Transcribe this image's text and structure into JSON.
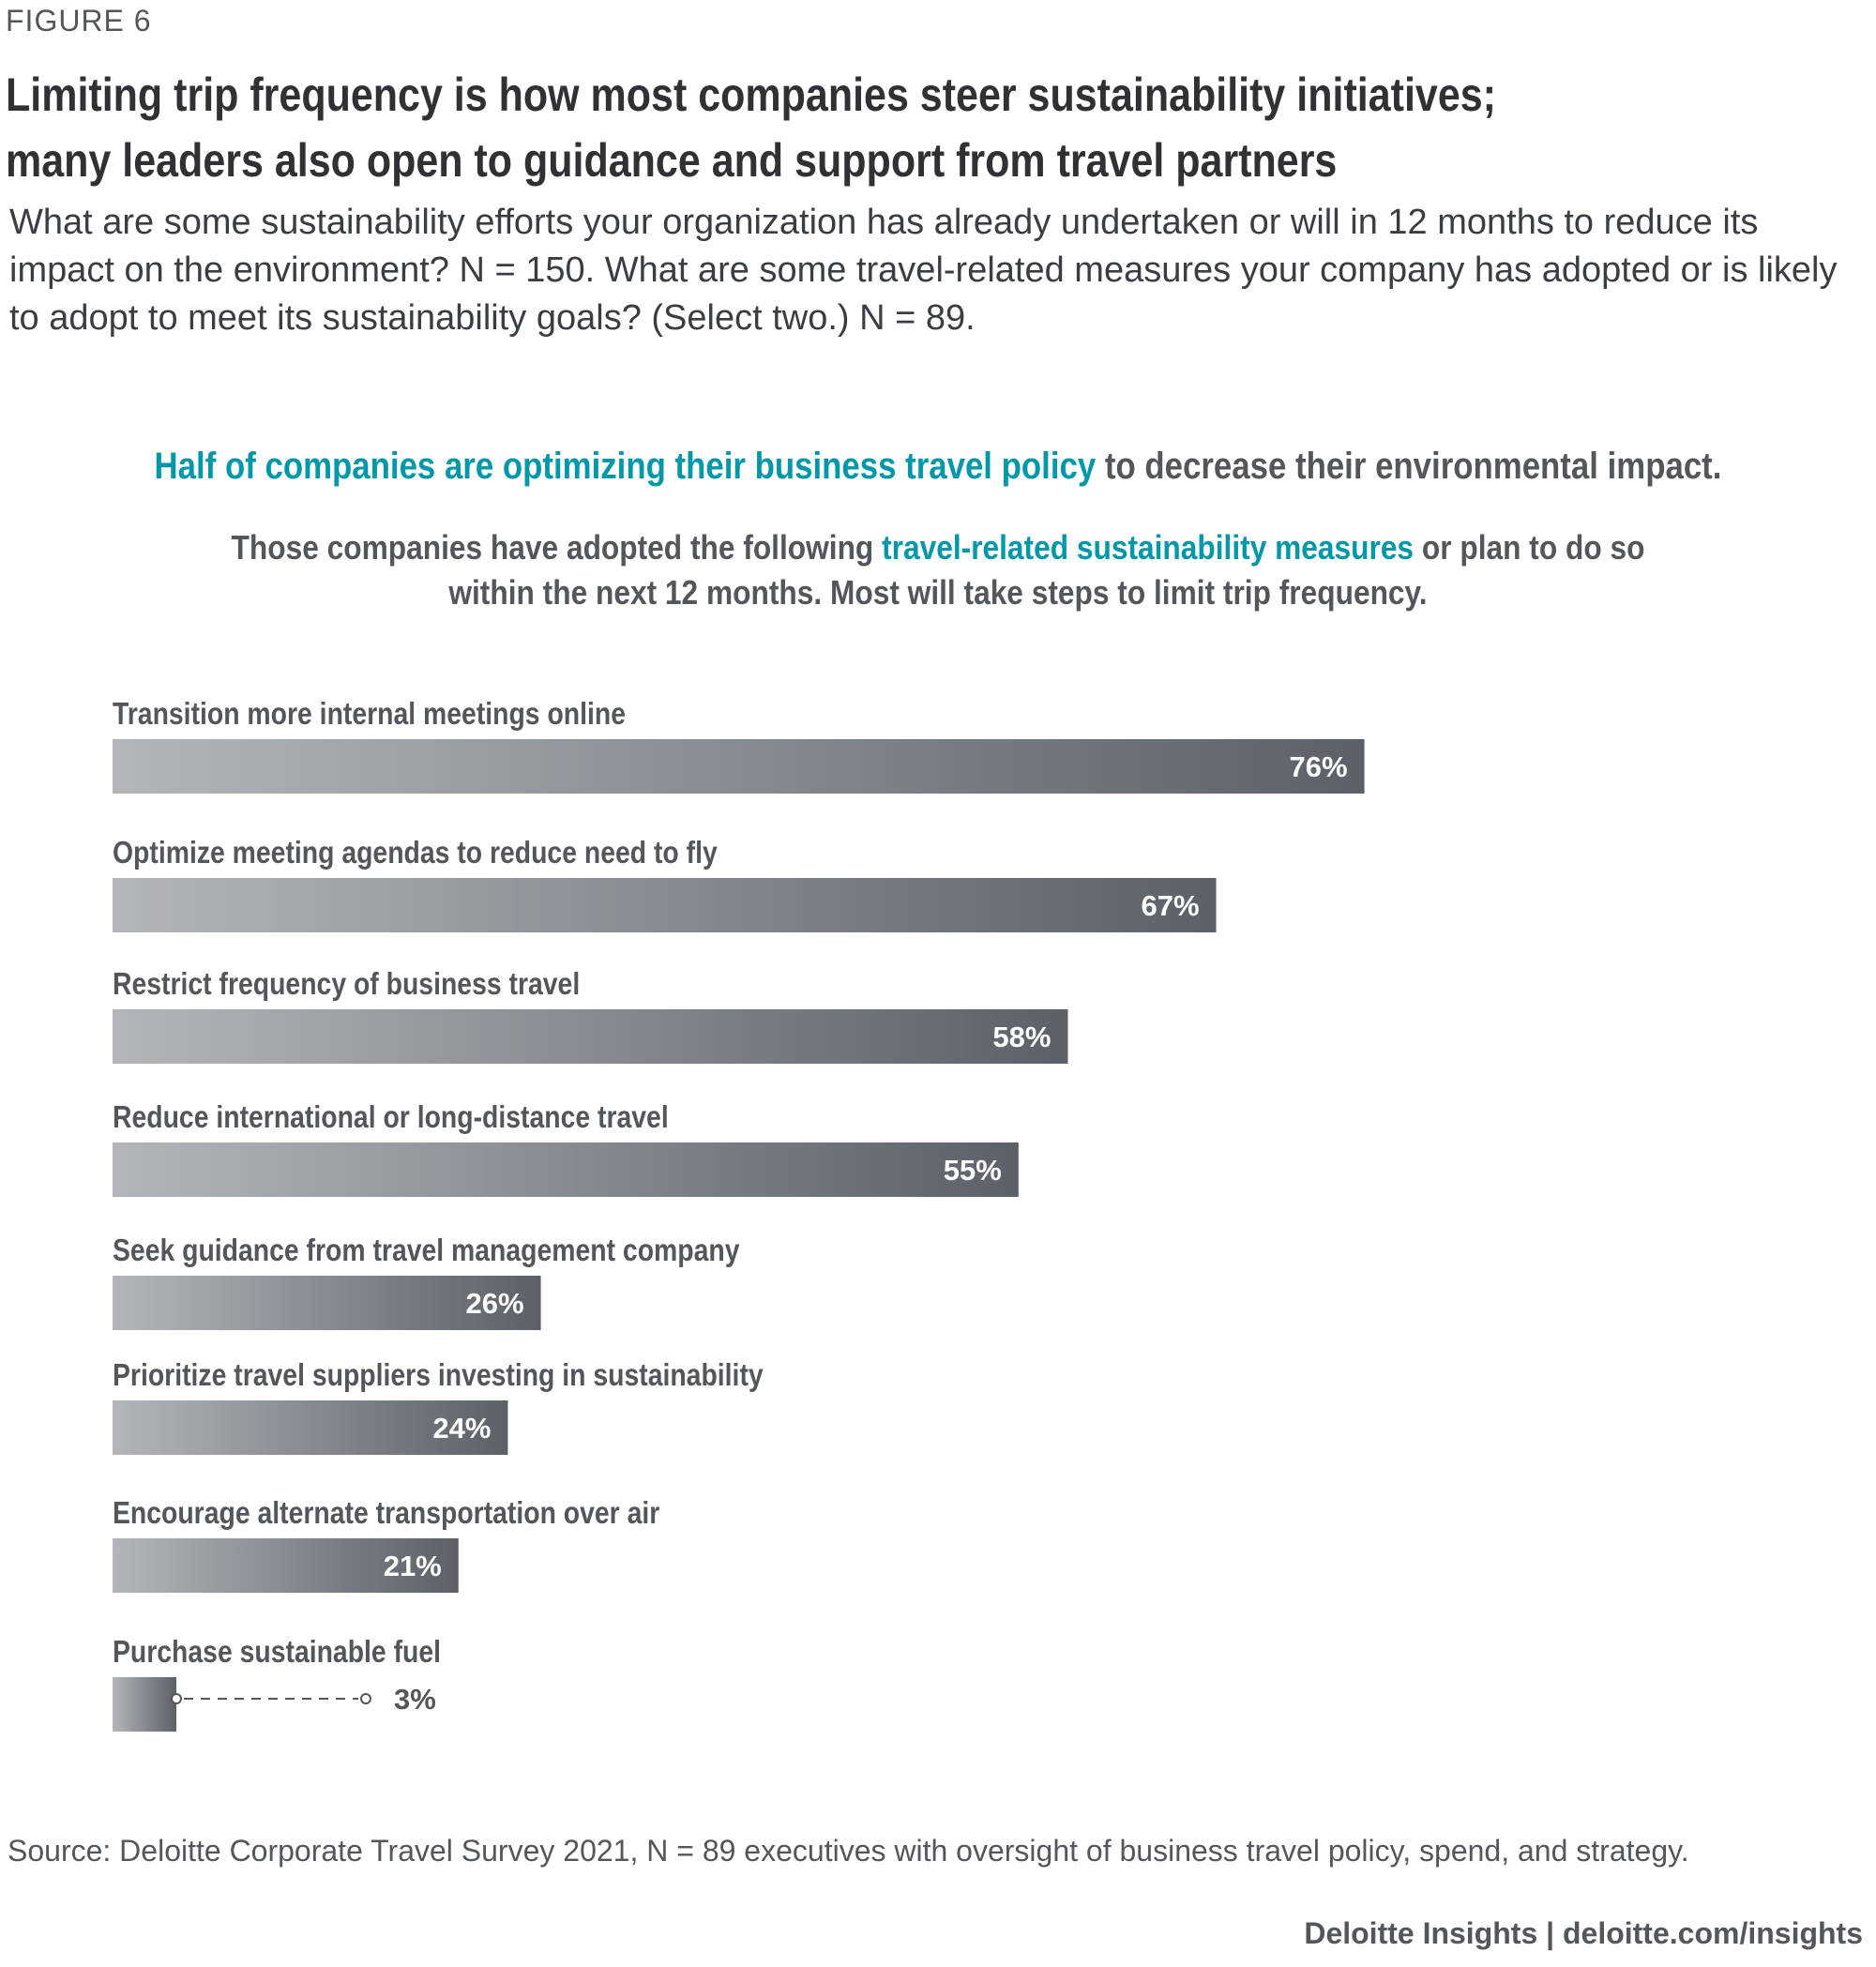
{
  "figure_label": "FIGURE 6",
  "title": {
    "line1": "Limiting trip frequency is how most companies steer sustainability initiatives;",
    "line2": "many leaders also open to guidance and support from travel partners"
  },
  "subtitle": "What are some sustainability efforts your organization has already undertaken or will in 12 months to reduce its impact on the environment? N = 150. What are some travel-related measures your company has adopted or is likely to adopt to meet its sustainability goals? (Select two.) N = 89.",
  "headline": {
    "highlight": "Half of companies are optimizing their business travel policy",
    "rest": " to decrease their environmental impact."
  },
  "lead": {
    "part1": "Those companies have adopted the following ",
    "highlight": "travel-related sustainability measures",
    "part2": " or plan to do so",
    "line2": "within the next 12 months. Most will take steps to limit trip frequency."
  },
  "colors": {
    "bar_start": "#b3b6b9",
    "bar_end": "#5c6068",
    "accent_teal": "#0097a9",
    "text": "#53565a"
  },
  "chart_data": {
    "type": "bar",
    "orientation": "horizontal",
    "title": "",
    "xlabel": "",
    "ylabel": "",
    "xlim": [
      0,
      100
    ],
    "unit": "%",
    "categories": [
      "Transition more internal meetings online",
      "Optimize meeting agendas to reduce need to fly",
      "Restrict frequency of business travel",
      "Reduce international or long-distance travel",
      "Seek guidance from travel management company",
      "Prioritize travel suppliers investing in sustainability",
      "Encourage alternate transportation over air",
      "Purchase sustainable fuel"
    ],
    "values": [
      76,
      67,
      58,
      55,
      26,
      24,
      21,
      3
    ],
    "value_labels": [
      "76%",
      "67%",
      "58%",
      "55%",
      "26%",
      "24%",
      "21%",
      "3%"
    ]
  },
  "source": "Source: Deloitte Corporate Travel Survey 2021, N = 89 executives with oversight of business travel policy, spend, and strategy.",
  "footer": "Deloitte Insights | deloitte.com/insights"
}
